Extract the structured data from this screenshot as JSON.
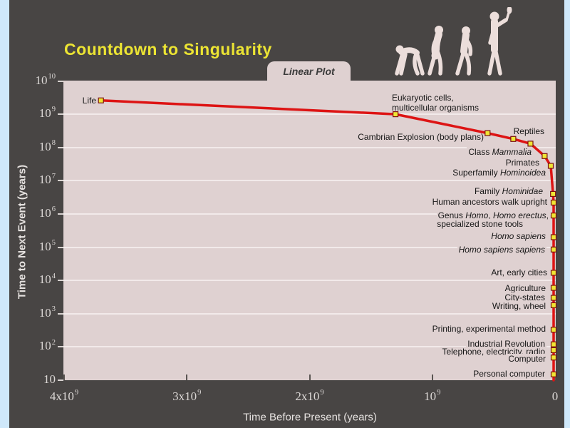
{
  "slide": {
    "title": "Countdown to Singularity",
    "tab_label": "Linear Plot",
    "evolution_icon": "evolution-of-man-silhouettes"
  },
  "colors": {
    "frame_border": "#cfe8fa",
    "slide_background": "#484544",
    "plot_background": "#dfd1d1",
    "gridline": "#f2eaea",
    "title_text": "#ece433",
    "line": "#dd1414",
    "marker_fill": "#f0e635",
    "marker_border": "#7a1010",
    "axis_text": "#dcd8d6",
    "event_label_text": "#161616",
    "silhouette": "#ecdedb"
  },
  "chart_data": {
    "type": "line",
    "title": "Countdown to Singularity",
    "subtitle": "Linear Plot",
    "xlabel": "Time Before Present (years)",
    "ylabel": "Time to Next Event (years)",
    "grid": "horizontal-only",
    "legend": "none",
    "x_axis": {
      "scale": "linear",
      "min": 0,
      "max": 4000000000.0,
      "reversed_toward_right": true,
      "ticks": [
        {
          "label": "4x10^9",
          "value": 4000000000.0
        },
        {
          "label": "3x10^9",
          "value": 3000000000.0
        },
        {
          "label": "2x10^9",
          "value": 2000000000.0
        },
        {
          "label": "10^9",
          "value": 1000000000.0
        },
        {
          "label": "0",
          "value": 0
        }
      ]
    },
    "y_axis": {
      "scale": "log",
      "min": 10,
      "max": 10000000000.0,
      "ticks": [
        "10^10",
        "10^9",
        "10^8",
        "10^7",
        "10^6",
        "10^5",
        "10^4",
        "10^3",
        "10^2",
        "10"
      ]
    },
    "series_color": "#dd1414",
    "marker_style": "yellow-square",
    "events": [
      {
        "label": "Life",
        "lines": [
          "Life"
        ],
        "time_before_present": 3700000000.0,
        "time_to_next_event": 2600000000.0
      },
      {
        "label": "Eukaryotic cells, multicellular organisms",
        "lines": [
          "Eukaryotic cells,",
          "multicellular organisms"
        ],
        "time_before_present": 1300000000.0,
        "time_to_next_event": 1000000000.0
      },
      {
        "label": "Cambrian Explosion (body plans)",
        "lines": [
          "Cambrian Explosion (body plans)"
        ],
        "time_before_present": 550000000.0,
        "time_to_next_event": 270000000.0
      },
      {
        "label": "Reptiles",
        "lines": [
          "Reptiles"
        ],
        "time_before_present": 340000000.0,
        "time_to_next_event": 180000000.0
      },
      {
        "label": "Class Mammalia",
        "lines": [
          "Class *Mammalia*"
        ],
        "time_before_present": 200000000.0,
        "time_to_next_event": 130000000.0
      },
      {
        "label": "Primates",
        "lines": [
          "Primates"
        ],
        "time_before_present": 85000000.0,
        "time_to_next_event": 55000000.0
      },
      {
        "label": "Superfamily Hominoidea",
        "lines": [
          "Superfamily *Hominoidea*"
        ],
        "time_before_present": 35000000.0,
        "time_to_next_event": 28000000.0
      },
      {
        "label": "Family Hominidae",
        "lines": [
          "Family *Hominidae*"
        ],
        "time_before_present": 16000000.0,
        "time_to_next_event": 4000000.0
      },
      {
        "label": "Human ancestors walk upright",
        "lines": [
          "Human ancestors walk upright"
        ],
        "time_before_present": 5000000.0,
        "time_to_next_event": 2200000.0
      },
      {
        "label": "Genus Homo, Homo erectus, specialized stone tools",
        "lines": [
          "Genus *Homo*, *Homo erectus*,",
          "specialized stone tools"
        ],
        "time_before_present": 2000000.0,
        "time_to_next_event": 900000.0
      },
      {
        "label": "Homo sapiens",
        "lines": [
          "*Homo sapiens*"
        ],
        "time_before_present": 500000.0,
        "time_to_next_event": 200000.0
      },
      {
        "label": "Homo sapiens sapiens",
        "lines": [
          "*Homo sapiens sapiens*"
        ],
        "time_before_present": 200000.0,
        "time_to_next_event": 85000.0
      },
      {
        "label": "Art, early cities",
        "lines": [
          "Art, early cities"
        ],
        "time_before_present": 50000.0,
        "time_to_next_event": 17000.0
      },
      {
        "label": "Agriculture",
        "lines": [
          "Agriculture"
        ],
        "time_before_present": 12000.0,
        "time_to_next_event": 6000.0
      },
      {
        "label": "City-states",
        "lines": [
          "City-states"
        ],
        "time_before_present": 6000.0,
        "time_to_next_event": 3000.0
      },
      {
        "label": "Writing, wheel",
        "lines": [
          "Writing, wheel"
        ],
        "time_before_present": 5000.0,
        "time_to_next_event": 1800.0
      },
      {
        "label": "Printing, experimental method",
        "lines": [
          "Printing, experimental method"
        ],
        "time_before_present": 500.0,
        "time_to_next_event": 330.0
      },
      {
        "label": "Industrial Revolution",
        "lines": [
          "Industrial Revolution"
        ],
        "time_before_present": 250.0,
        "time_to_next_event": 120.0
      },
      {
        "label": "Telephone, electricity, radio",
        "lines": [
          "Telephone, electricity, radio"
        ],
        "time_before_present": 120.0,
        "time_to_next_event": 80.0
      },
      {
        "label": "Computer",
        "lines": [
          "Computer"
        ],
        "time_before_present": 60.0,
        "time_to_next_event": 48.0
      },
      {
        "label": "Personal computer",
        "lines": [
          "Personal computer"
        ],
        "time_before_present": 30.0,
        "time_to_next_event": 15.0
      }
    ]
  }
}
